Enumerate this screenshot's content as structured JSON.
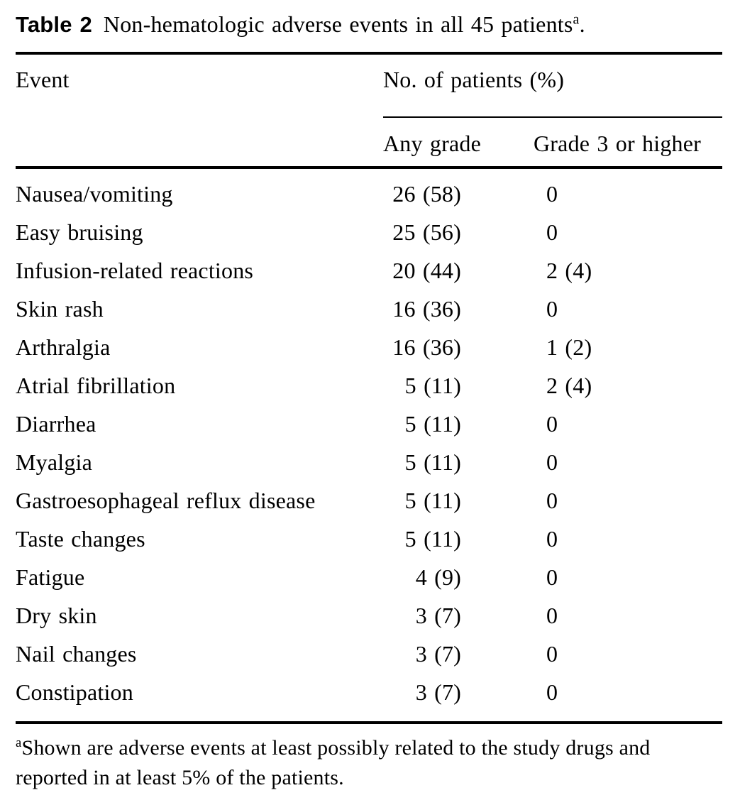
{
  "caption": {
    "label": "Table 2",
    "text": "Non-hematologic adverse events in all 45 patients",
    "footnote_marker": "a",
    "period": "."
  },
  "table": {
    "event_header": "Event",
    "group_header": "No. of patients (%)",
    "subheaders": [
      "Any grade",
      "Grade 3 or higher"
    ],
    "rows": [
      {
        "event": "Nausea/vomiting",
        "any_grade": "26 (58)",
        "grade_3_or_higher": "0"
      },
      {
        "event": "Easy bruising",
        "any_grade": "25 (56)",
        "grade_3_or_higher": "0"
      },
      {
        "event": "Infusion-related reactions",
        "any_grade": "20 (44)",
        "grade_3_or_higher": "2 (4)"
      },
      {
        "event": "Skin rash",
        "any_grade": "16 (36)",
        "grade_3_or_higher": "0"
      },
      {
        "event": "Arthralgia",
        "any_grade": "16 (36)",
        "grade_3_or_higher": "1 (2)"
      },
      {
        "event": "Atrial fibrillation",
        "any_grade": "5 (11)",
        "grade_3_or_higher": "2 (4)"
      },
      {
        "event": "Diarrhea",
        "any_grade": "5 (11)",
        "grade_3_or_higher": "0"
      },
      {
        "event": "Myalgia",
        "any_grade": "5 (11)",
        "grade_3_or_higher": "0"
      },
      {
        "event": "Gastroesophageal reflux disease",
        "any_grade": "5 (11)",
        "grade_3_or_higher": "0"
      },
      {
        "event": "Taste changes",
        "any_grade": "5 (11)",
        "grade_3_or_higher": "0"
      },
      {
        "event": "Fatigue",
        "any_grade": "4 (9)",
        "grade_3_or_higher": "0"
      },
      {
        "event": "Dry skin",
        "any_grade": "3 (7)",
        "grade_3_or_higher": "0"
      },
      {
        "event": "Nail changes",
        "any_grade": "3 (7)",
        "grade_3_or_higher": "0"
      },
      {
        "event": "Constipation",
        "any_grade": "3 (7)",
        "grade_3_or_higher": "0"
      }
    ]
  },
  "footnote": {
    "marker": "a",
    "text": "Shown are adverse events at least possibly related to the study drugs and reported in at least 5% of the patients."
  }
}
